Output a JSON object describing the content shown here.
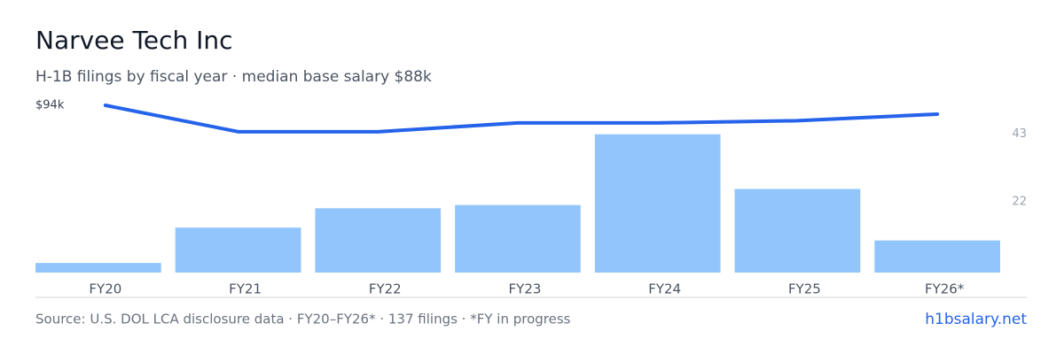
{
  "chart_data": {
    "type": "bar",
    "title": "Narvee Tech Inc",
    "subtitle": "H-1B filings by fiscal year · median base salary $88k",
    "categories": [
      "FY20",
      "FY21",
      "FY22",
      "FY23",
      "FY24",
      "FY25",
      "FY26*"
    ],
    "series": [
      {
        "type": "bar",
        "axis": "y2",
        "color": "#93c5fd",
        "values": [
          3,
          14,
          20,
          21,
          43,
          26,
          10
        ]
      },
      {
        "type": "line",
        "color": "#2563eb",
        "values": [
          94000,
          88000,
          88000,
          90000,
          90000,
          90500,
          92000
        ]
      }
    ],
    "ylim": [
      56000,
      94000
    ],
    "yticks": [
      {
        "value": 94000,
        "label": "$94k"
      }
    ],
    "y2lim": [
      0,
      52
    ],
    "y2ticks": [
      22,
      43
    ],
    "source": "Source: U.S. DOL LCA disclosure data · FY20–FY26* · 137 filings · *FY in progress",
    "brand": "h1bsalary.net"
  }
}
